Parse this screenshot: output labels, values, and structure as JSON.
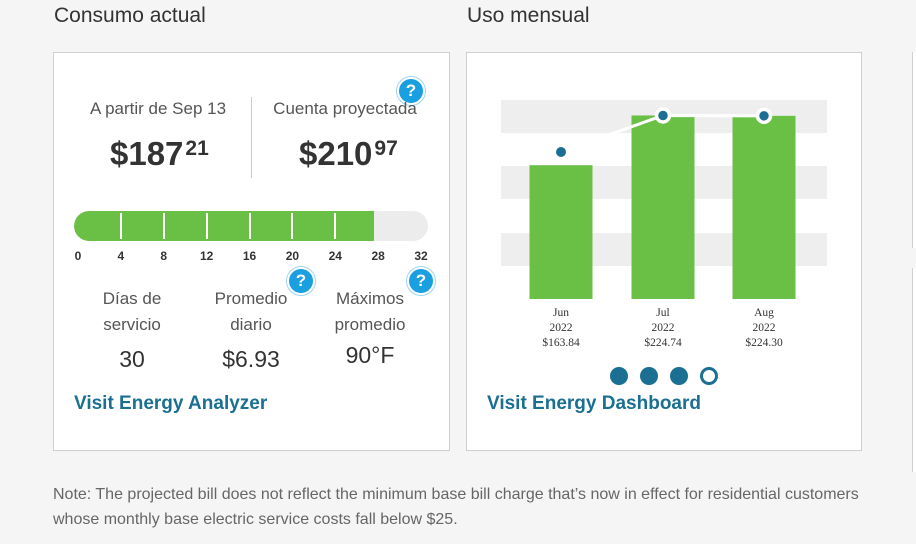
{
  "left_section": {
    "title": "Consumo actual",
    "as_of_label": "A partir de Sep 13",
    "as_of_dollars": "$187",
    "as_of_cents": "21",
    "projected_label": "Cuenta proyectada",
    "projected_dollars": "$210",
    "projected_cents": "97",
    "progress": {
      "current_day": 28,
      "max": 32,
      "ticks": [
        "0",
        "4",
        "8",
        "12",
        "16",
        "20",
        "24",
        "28",
        "32"
      ]
    },
    "stats": [
      {
        "label_line1": "Días de",
        "label_line2": "servicio",
        "value": "30"
      },
      {
        "label_line1": "Promedio",
        "label_line2": "diario",
        "value": "$6.93"
      },
      {
        "label_line1": "Máximos",
        "label_line2": "promedio",
        "value": "90°F"
      }
    ],
    "help_icon_text": "?",
    "link": "Visit Energy Analyzer"
  },
  "right_section": {
    "title": "Uso mensual",
    "link": "Visit Energy Dashboard",
    "carousel": {
      "count": 4,
      "active_index": 3
    }
  },
  "chart_data": {
    "type": "bar",
    "categories": [
      "Jun 2022",
      "Jul 2022",
      "Aug 2022"
    ],
    "x_labels": [
      {
        "month": "Jun",
        "year": "2022",
        "amount": "$163.84"
      },
      {
        "month": "Jul",
        "year": "2022",
        "amount": "$224.74"
      },
      {
        "month": "Aug",
        "year": "2022",
        "amount": "$224.30"
      }
    ],
    "values": [
      163.84,
      224.74,
      224.3
    ],
    "line_values": [
      180,
      224.74,
      224.3
    ],
    "ylim": [
      0,
      240
    ],
    "bar_color": "#6abf45",
    "line_color": "#ffffff",
    "point_color": "#1b6f93"
  },
  "note": "Note: The projected bill does not reflect the minimum base bill charge that’s now in effect for residential customers whose monthly base electric service costs fall below $25.",
  "colors": {
    "accent": "#1b6f93",
    "green": "#6abf45",
    "help": "#1a9fe0"
  }
}
